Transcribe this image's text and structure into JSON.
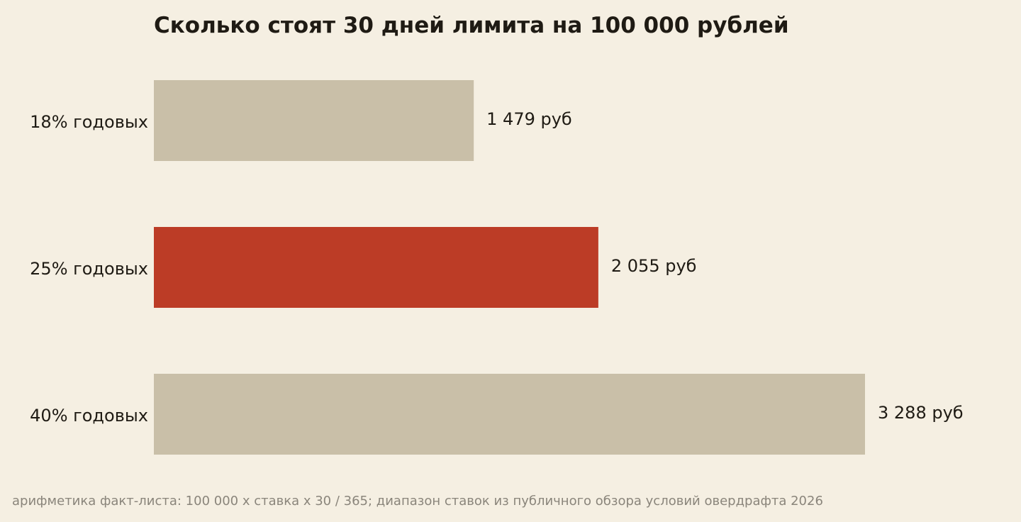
{
  "chart_data": {
    "type": "bar",
    "orientation": "horizontal",
    "title": "Сколько стоят 30 дней лимита на 100 000 рублей",
    "categories": [
      "18% годовых",
      "25% годовых",
      "40% годовых"
    ],
    "values": [
      1479,
      2055,
      3288
    ],
    "value_labels": [
      "1 479 руб",
      "2 055 руб",
      "3 288 руб"
    ],
    "highlight_index": 1,
    "xlim": [
      0,
      3288
    ],
    "grid": false,
    "legend": "none",
    "footnote": "арифметика факт-листа: 100 000 х ставка х 30 / 365; диапазон ставок из публичного обзора условий овердрафта 2026"
  },
  "colors": {
    "background": "#f5efe2",
    "bar_default": "#c9bfa8",
    "bar_highlight": "#bc3c26",
    "text": "#1f1b14",
    "footnote": "#8a857b"
  }
}
